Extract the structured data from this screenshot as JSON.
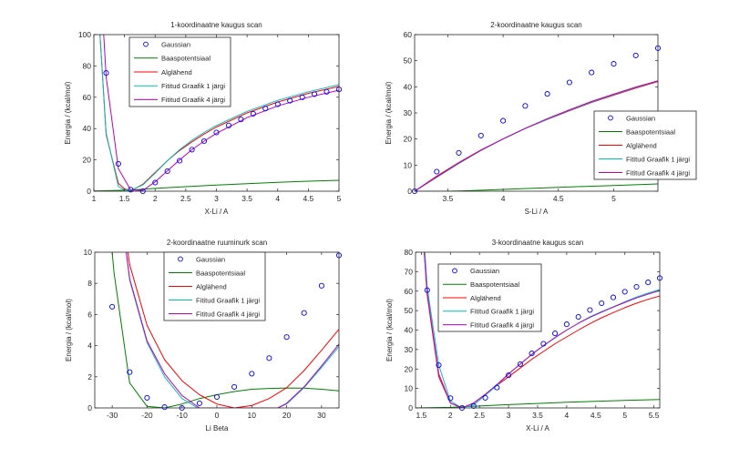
{
  "figure": {
    "series_colors": {
      "Gaussian": "#0000ff",
      "Baaspotentsiaal": "#008000",
      "Alglähend": "#ff0000",
      "Fititud Graafik 1 järgi": "#00bfbf",
      "Fititud Graafik 4 järgi": "#bf00bf"
    },
    "legend_entries": [
      "Gaussian",
      "Baaspotentsiaal",
      "Alglähend",
      "Fititud Graafik 1 järgi",
      "Fititud Graafik 4 järgi"
    ]
  },
  "chart_data": [
    {
      "type": "line",
      "title": "1-koordinaatne kaugus scan",
      "xlabel": "X-Li / A",
      "ylabel": "Energia / (kcal/mol)",
      "xlim": [
        1,
        5
      ],
      "ylim": [
        0,
        100
      ],
      "xticks": [
        1,
        1.5,
        2,
        2.5,
        3,
        3.5,
        4,
        4.5,
        5
      ],
      "yticks": [
        0,
        20,
        40,
        60,
        80,
        100
      ],
      "grid": false,
      "legend_position": "top-left-inner",
      "series": [
        {
          "name": "Gaussian",
          "style": "markers",
          "x": [
            1.2,
            1.4,
            1.6,
            1.8,
            2.0,
            2.2,
            2.4,
            2.6,
            2.8,
            3.0,
            3.2,
            3.4,
            3.6,
            3.8,
            4.0,
            4.2,
            4.4,
            4.6,
            4.8,
            5.0
          ],
          "y": [
            75.5,
            17.5,
            1.0,
            0.0,
            5.5,
            12.8,
            19.5,
            26.5,
            32.0,
            37.5,
            42.0,
            45.8,
            49.5,
            52.8,
            55.5,
            57.8,
            60.0,
            62.0,
            63.5,
            65.0
          ]
        },
        {
          "name": "Baaspotentsiaal",
          "style": "line",
          "x": [
            1.0,
            1.2,
            1.4,
            1.6,
            1.8,
            2.0,
            2.5,
            3.0,
            3.5,
            4.0,
            4.5,
            5.0
          ],
          "y": [
            0.2,
            0.3,
            0.5,
            0.8,
            1.2,
            1.8,
            2.9,
            3.9,
            4.8,
            5.7,
            6.4,
            7.0
          ]
        },
        {
          "name": "Alglähend",
          "style": "line",
          "x": [
            1.1,
            1.2,
            1.4,
            1.5,
            1.6,
            1.8,
            2.0,
            2.2,
            2.4,
            2.6,
            2.8,
            3.0,
            3.5,
            4.0,
            4.5,
            5.0
          ],
          "y": [
            100,
            36,
            5,
            1.5,
            0.2,
            4.5,
            12,
            19.5,
            26,
            31.5,
            36.5,
            41,
            50,
            57,
            62.5,
            67
          ]
        },
        {
          "name": "Fititud Graafik 1 järgi",
          "style": "line",
          "x": [
            1.1,
            1.2,
            1.4,
            1.5,
            1.6,
            1.8,
            2.0,
            2.2,
            2.4,
            2.6,
            2.8,
            3.0,
            3.5,
            4.0,
            4.5,
            5.0
          ],
          "y": [
            100,
            37,
            3,
            0.8,
            0.5,
            4.0,
            11.5,
            19.5,
            26.5,
            32.5,
            37.5,
            42,
            51,
            58,
            63.5,
            68
          ]
        },
        {
          "name": "Fititud Graafik 4 järgi",
          "style": "line",
          "x": [
            1.16,
            1.2,
            1.4,
            1.6,
            1.8,
            2.0,
            2.2,
            2.4,
            2.6,
            2.8,
            3.0,
            3.5,
            4.0,
            4.5,
            5.0
          ],
          "y": [
            100,
            73,
            14.5,
            0.8,
            0.5,
            6.0,
            13,
            20,
            26.5,
            32,
            37,
            47,
            54.5,
            60,
            64.5
          ]
        }
      ]
    },
    {
      "type": "line",
      "title": "2-koordinaatne kaugus scan",
      "xlabel": "S-Li / A",
      "ylabel": "Energia / (kcal/mol)",
      "xlim": [
        3.2,
        5.4
      ],
      "ylim": [
        0,
        60
      ],
      "xticks": [
        3.5,
        4,
        4.5,
        5
      ],
      "yticks": [
        0,
        10,
        20,
        30,
        40,
        50,
        60
      ],
      "grid": false,
      "legend_position": "right-outer",
      "series": [
        {
          "name": "Gaussian",
          "style": "markers",
          "x": [
            3.2,
            3.4,
            3.6,
            3.8,
            4.0,
            4.2,
            4.4,
            4.6,
            4.8,
            5.0,
            5.2,
            5.4
          ],
          "y": [
            0.0,
            7.5,
            14.7,
            21.3,
            27.0,
            32.7,
            37.3,
            41.7,
            45.5,
            48.8,
            52.0,
            54.8
          ]
        },
        {
          "name": "Baaspotentsiaal",
          "style": "line",
          "x": [
            3.2,
            3.5,
            3.7,
            4.0,
            4.5,
            5.0,
            5.4
          ],
          "y": [
            0.0,
            0.0,
            0.2,
            0.7,
            1.5,
            2.2,
            2.8
          ]
        },
        {
          "name": "Alglähend",
          "style": "line",
          "x": [
            3.2,
            3.4,
            3.6,
            3.8,
            4.0,
            4.2,
            4.4,
            4.6,
            4.8,
            5.0,
            5.2,
            5.4
          ],
          "y": [
            0.0,
            5.8,
            11.0,
            15.8,
            20.0,
            24.0,
            27.5,
            30.8,
            34.0,
            36.8,
            39.5,
            42.0
          ]
        },
        {
          "name": "Fititud Graafik 1 järgi",
          "style": "line",
          "x": [
            3.2,
            3.4,
            3.6,
            3.8,
            4.0,
            4.2,
            4.4,
            4.6,
            4.8,
            5.0,
            5.2,
            5.4
          ],
          "y": [
            0.0,
            5.3,
            10.6,
            15.6,
            20.0,
            24.0,
            27.6,
            31.0,
            34.2,
            37.0,
            39.7,
            42.2
          ]
        },
        {
          "name": "Fititud Graafik 4 järgi",
          "style": "line",
          "x": [
            3.2,
            3.4,
            3.6,
            3.8,
            4.0,
            4.2,
            4.4,
            4.6,
            4.8,
            5.0,
            5.2,
            5.4
          ],
          "y": [
            0.0,
            5.5,
            10.8,
            15.7,
            20.1,
            24.1,
            27.8,
            31.2,
            34.4,
            37.2,
            39.9,
            42.3
          ]
        }
      ]
    },
    {
      "type": "line",
      "title": "2-koordinaatne ruuminurk scan",
      "xlabel": "Li Beta",
      "ylabel": "Energia / (kcal/mol)",
      "xlim": [
        -35,
        35
      ],
      "ylim": [
        0,
        10
      ],
      "xticks": [
        -30,
        -20,
        -10,
        0,
        10,
        20,
        30
      ],
      "yticks": [
        0,
        2,
        4,
        6,
        8,
        10
      ],
      "grid": false,
      "legend_position": "top-center",
      "series": [
        {
          "name": "Gaussian",
          "style": "markers",
          "x": [
            -30,
            -25,
            -20,
            -15,
            -10,
            -5,
            0,
            5,
            10,
            15,
            20,
            25,
            30,
            35
          ],
          "y": [
            6.5,
            2.3,
            0.65,
            0.05,
            0.0,
            0.3,
            0.7,
            1.35,
            2.2,
            3.2,
            4.55,
            6.1,
            7.85,
            9.8
          ]
        },
        {
          "name": "Baaspotentsiaal",
          "style": "line",
          "x": [
            -30,
            -29.5,
            -25,
            -20,
            -15,
            -10,
            -5,
            0,
            5,
            10,
            15,
            20,
            25,
            30,
            35
          ],
          "y": [
            10,
            8.7,
            1.6,
            0.1,
            0.0,
            0.25,
            0.6,
            0.85,
            1.05,
            1.2,
            1.25,
            1.28,
            1.27,
            1.2,
            1.1
          ]
        },
        {
          "name": "Alglähend",
          "style": "line",
          "x": [
            -25.5,
            -25,
            -20,
            -15,
            -10,
            -5,
            0,
            5,
            10,
            15,
            20,
            25,
            30,
            35
          ],
          "y": [
            10,
            9.2,
            5.3,
            3.1,
            1.75,
            0.85,
            0.25,
            0.0,
            0.15,
            0.6,
            1.3,
            2.4,
            3.7,
            5.05
          ]
        },
        {
          "name": "Fititud Graafik 1 järgi",
          "style": "line",
          "x": [
            -26,
            -25,
            -20,
            -15,
            -10,
            -5.5,
            17.5,
            20,
            25,
            30,
            35
          ],
          "y": [
            10,
            8.2,
            4.2,
            2.0,
            0.6,
            0.0,
            0.0,
            0.25,
            1.3,
            2.6,
            3.95
          ]
        },
        {
          "name": "Fititud Graafik 4 järgi",
          "style": "line",
          "x": [
            -26,
            -25,
            -20,
            -15,
            -10,
            -5,
            17.5,
            20,
            25,
            30,
            35
          ],
          "y": [
            10,
            8.3,
            4.3,
            2.2,
            0.8,
            0.0,
            0.0,
            0.3,
            1.35,
            2.7,
            4.1
          ]
        }
      ]
    },
    {
      "type": "line",
      "title": "3-koordinaatne kaugus scan",
      "xlabel": "X-Li / A",
      "ylabel": "Energia / (kcal/mol)",
      "xlim": [
        1.4,
        5.6
      ],
      "ylim": [
        0,
        80
      ],
      "xticks": [
        1.5,
        2,
        2.5,
        3,
        3.5,
        4,
        4.5,
        5,
        5.5
      ],
      "yticks": [
        0,
        10,
        20,
        30,
        40,
        50,
        60,
        70,
        80
      ],
      "grid": false,
      "legend_position": "top-left-inner",
      "series": [
        {
          "name": "Gaussian",
          "style": "markers",
          "x": [
            1.6,
            1.8,
            2.0,
            2.2,
            2.4,
            2.6,
            2.8,
            3.0,
            3.2,
            3.4,
            3.6,
            3.8,
            4.0,
            4.2,
            4.4,
            4.6,
            4.8,
            5.0,
            5.2,
            5.4,
            5.6
          ],
          "y": [
            60.5,
            22,
            5,
            0,
            1,
            5.2,
            10.5,
            16.8,
            22.5,
            28,
            33,
            38.3,
            43,
            46.8,
            50.3,
            53.8,
            56.8,
            59.7,
            62.2,
            64.5,
            66.7
          ]
        },
        {
          "name": "Baaspotentsiaal",
          "style": "line",
          "x": [
            1.4,
            2.0,
            2.5,
            3.0,
            3.5,
            4.0,
            4.5,
            5.0,
            5.6
          ],
          "y": [
            0.0,
            0.3,
            1.0,
            1.7,
            2.3,
            2.9,
            3.4,
            3.9,
            4.3
          ]
        },
        {
          "name": "Alglähend",
          "style": "line",
          "x": [
            1.55,
            1.6,
            1.8,
            2.0,
            2.2,
            2.4,
            2.6,
            2.8,
            3.0,
            3.2,
            3.4,
            3.6,
            3.8,
            4.0,
            4.2,
            4.4,
            4.6,
            4.8,
            5.0,
            5.2,
            5.4,
            5.6
          ],
          "y": [
            80,
            58,
            16,
            2.5,
            0,
            2.5,
            7,
            11.5,
            16,
            20.5,
            25,
            29,
            33,
            36.5,
            40,
            43.3,
            46.3,
            49,
            51.5,
            53.8,
            55.8,
            57.5
          ]
        },
        {
          "name": "Fititud Graafik 1 järgi",
          "style": "line",
          "x": [
            1.56,
            1.6,
            1.8,
            2.0,
            2.2,
            2.4,
            2.6,
            2.8,
            3.0,
            3.2,
            3.4,
            3.6,
            3.8,
            4.0,
            4.2,
            4.4,
            4.6,
            4.8,
            5.0,
            5.2,
            5.4,
            5.6
          ],
          "y": [
            80,
            62,
            22,
            3.5,
            0,
            1.5,
            6.5,
            11.5,
            17.5,
            22.5,
            27.5,
            32,
            36,
            40,
            43.5,
            46.8,
            49.5,
            52,
            54.5,
            57,
            59,
            60.8
          ]
        },
        {
          "name": "Fititud Graafik 4 järgi",
          "style": "line",
          "x": [
            1.55,
            1.6,
            1.8,
            2.0,
            2.2,
            2.4,
            2.6,
            2.8,
            3.0,
            3.2,
            3.4,
            3.6,
            3.8,
            4.0,
            4.2,
            4.4,
            4.6,
            4.8,
            5.0,
            5.2,
            5.4,
            5.6
          ],
          "y": [
            80,
            59,
            17.5,
            2.5,
            0,
            2.5,
            7,
            12,
            17.5,
            22.5,
            27.5,
            32,
            36.2,
            40,
            43.5,
            46.5,
            49.2,
            51.8,
            54.2,
            56.5,
            58.5,
            60.3
          ]
        }
      ]
    }
  ]
}
